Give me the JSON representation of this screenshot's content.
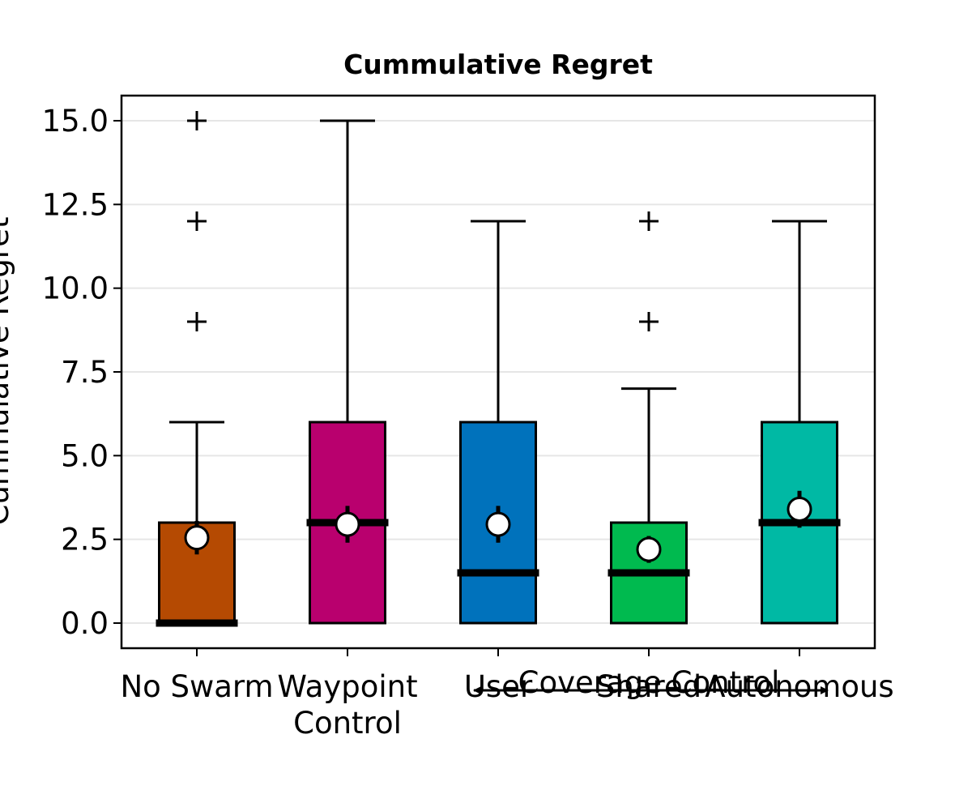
{
  "chart_data": {
    "type": "box",
    "title": "Cummulative Regret",
    "xlabel": "",
    "ylabel": "Cummulative Regret",
    "ylim": [
      -0.75,
      15.75
    ],
    "yticks": [
      "0.0",
      "2.5",
      "5.0",
      "7.5",
      "10.0",
      "12.5",
      "15.0"
    ],
    "grid": "horizontal",
    "categories": [
      "No Swarm",
      "Waypoint\nControl",
      "User",
      "Shared",
      "Autonomous"
    ],
    "boxes": [
      {
        "category": "No Swarm",
        "color": "#B54A02",
        "q1": 0,
        "median": 0,
        "q3": 3,
        "whisker_low": 0,
        "whisker_high": 6,
        "mean": 2.55,
        "mean_err": 0.5,
        "outliers": [
          9,
          12,
          15
        ]
      },
      {
        "category": "Waypoint Control",
        "color": "#B9006E",
        "q1": 0,
        "median": 3,
        "q3": 6,
        "whisker_low": 0,
        "whisker_high": 15,
        "mean": 2.95,
        "mean_err": 0.55,
        "outliers": []
      },
      {
        "category": "User",
        "color": "#0072BC",
        "q1": 0,
        "median": 1.5,
        "q3": 6,
        "whisker_low": 0,
        "whisker_high": 12,
        "mean": 2.95,
        "mean_err": 0.55,
        "outliers": []
      },
      {
        "category": "Shared",
        "color": "#00BA4F",
        "q1": 0,
        "median": 1.5,
        "q3": 3,
        "whisker_low": 0,
        "whisker_high": 7,
        "mean": 2.2,
        "mean_err": 0.4,
        "outliers": [
          9,
          12
        ]
      },
      {
        "category": "Autonomous",
        "color": "#00B9A4",
        "q1": 0,
        "median": 3,
        "q3": 6,
        "whisker_low": 0,
        "whisker_high": 12,
        "mean": 3.4,
        "mean_err": 0.55,
        "outliers": []
      }
    ],
    "annotation": {
      "text": "Coverage Control",
      "arrow": "double-headed",
      "from": "User",
      "to": "Autonomous"
    }
  }
}
